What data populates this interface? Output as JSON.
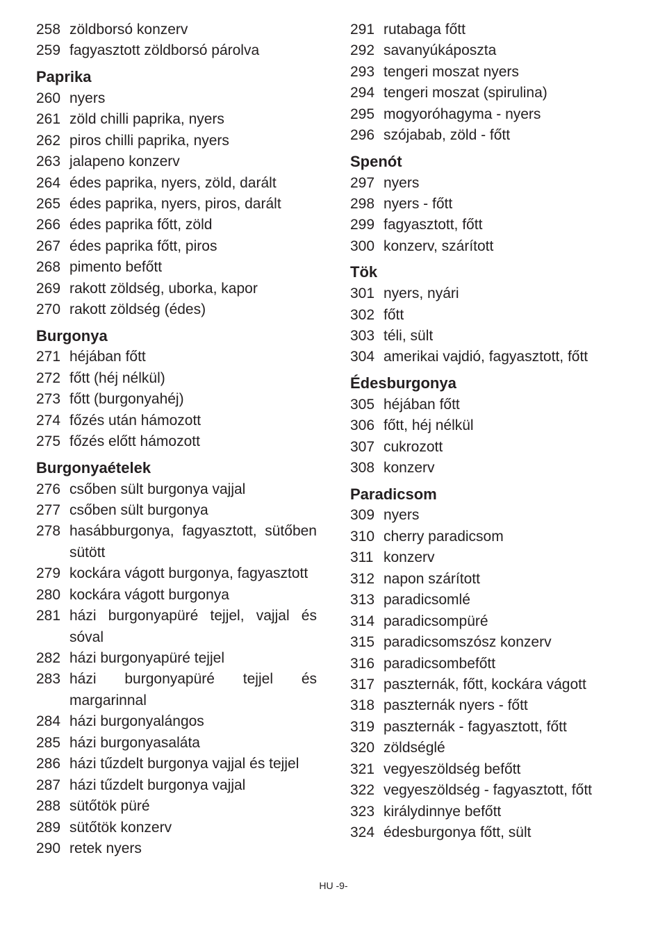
{
  "footer": "HU -9-",
  "leftColumn": [
    {
      "type": "item",
      "num": "258",
      "text": "zöldborsó konzerv"
    },
    {
      "type": "item",
      "num": "259",
      "text": "fagyasztott zöldborsó párolva"
    },
    {
      "type": "heading",
      "text": "Paprika"
    },
    {
      "type": "item",
      "num": "260",
      "text": "nyers"
    },
    {
      "type": "item",
      "num": "261",
      "text": "zöld chilli paprika, nyers"
    },
    {
      "type": "item",
      "num": "262",
      "text": "piros chilli paprika, nyers"
    },
    {
      "type": "item",
      "num": "263",
      "text": "jalapeno konzerv"
    },
    {
      "type": "item",
      "num": "264",
      "text": "édes paprika, nyers, zöld, darált"
    },
    {
      "type": "item",
      "num": "265",
      "text": "édes paprika, nyers, piros, darált"
    },
    {
      "type": "item",
      "num": "266",
      "text": "édes paprika főtt, zöld"
    },
    {
      "type": "item",
      "num": "267",
      "text": "édes paprika főtt, piros"
    },
    {
      "type": "item",
      "num": "268",
      "text": "pimento befőtt"
    },
    {
      "type": "item",
      "num": "269",
      "text": "rakott zöldség, uborka, kapor"
    },
    {
      "type": "item",
      "num": "270",
      "text": "rakott zöldség (édes)"
    },
    {
      "type": "heading",
      "text": "Burgonya"
    },
    {
      "type": "item",
      "num": "271",
      "text": "héjában főtt"
    },
    {
      "type": "item",
      "num": "272",
      "text": "főtt (héj nélkül)"
    },
    {
      "type": "item",
      "num": "273",
      "text": "főtt (burgonyahéj)"
    },
    {
      "type": "item",
      "num": "274",
      "text": "főzés után hámozott"
    },
    {
      "type": "item",
      "num": "275",
      "text": "főzés előtt hámozott"
    },
    {
      "type": "heading",
      "text": "Burgonyaételek"
    },
    {
      "type": "item",
      "num": "276",
      "text": "csőben sült burgonya vajjal"
    },
    {
      "type": "item",
      "num": "277",
      "text": "csőben sült burgonya"
    },
    {
      "type": "item",
      "num": "278",
      "text": "hasábburgonya, fagyasztott, sütőben sütött",
      "justify": true
    },
    {
      "type": "item",
      "num": "279",
      "text": "kockára vágott burgonya, fagyasztott"
    },
    {
      "type": "item",
      "num": "280",
      "text": "kockára vágott burgonya"
    },
    {
      "type": "item",
      "num": "281",
      "text": "házi burgonyapüré tejjel, vajjal és sóval",
      "justify": true
    },
    {
      "type": "item",
      "num": "282",
      "text": "házi burgonyapüré tejjel"
    },
    {
      "type": "item",
      "num": "283",
      "text": "házi burgonyapüré tejjel és margarinnal",
      "justify": true
    },
    {
      "type": "item",
      "num": "284",
      "text": "házi burgonyalángos"
    },
    {
      "type": "item",
      "num": "285",
      "text": "házi burgonyasaláta"
    },
    {
      "type": "item",
      "num": "286",
      "text": "házi tűzdelt burgonya vajjal és tejjel"
    },
    {
      "type": "item",
      "num": "287",
      "text": "házi tűzdelt burgonya vajjal"
    },
    {
      "type": "item",
      "num": "288",
      "text": "sütőtök püré"
    },
    {
      "type": "item",
      "num": "289",
      "text": "sütőtök konzerv"
    },
    {
      "type": "item",
      "num": "290",
      "text": "retek nyers"
    }
  ],
  "rightColumn": [
    {
      "type": "item",
      "num": "291",
      "text": "rutabaga főtt"
    },
    {
      "type": "item",
      "num": "292",
      "text": "savanyúkáposzta"
    },
    {
      "type": "item",
      "num": "293",
      "text": "tengeri moszat nyers"
    },
    {
      "type": "item",
      "num": "294",
      "text": "tengeri moszat (spirulina)"
    },
    {
      "type": "item",
      "num": "295",
      "text": "mogyoróhagyma - nyers"
    },
    {
      "type": "item",
      "num": "296",
      "text": "szójabab, zöld - főtt"
    },
    {
      "type": "heading",
      "text": "Spenót"
    },
    {
      "type": "item",
      "num": "297",
      "text": "nyers"
    },
    {
      "type": "item",
      "num": "298",
      "text": "nyers - főtt"
    },
    {
      "type": "item",
      "num": "299",
      "text": "fagyasztott, főtt"
    },
    {
      "type": "item",
      "num": "300",
      "text": "konzerv, szárított"
    },
    {
      "type": "heading",
      "text": "Tök"
    },
    {
      "type": "item",
      "num": "301",
      "text": "nyers, nyári"
    },
    {
      "type": "item",
      "num": "302",
      "text": "főtt"
    },
    {
      "type": "item",
      "num": "303",
      "text": "téli, sült"
    },
    {
      "type": "item",
      "num": "304",
      "text": "amerikai vajdió, fagyasztott, főtt"
    },
    {
      "type": "heading",
      "text": "Édesburgonya"
    },
    {
      "type": "item",
      "num": "305",
      "text": "héjában főtt"
    },
    {
      "type": "item",
      "num": "306",
      "text": "főtt, héj nélkül"
    },
    {
      "type": "item",
      "num": "307",
      "text": "cukrozott"
    },
    {
      "type": "item",
      "num": "308",
      "text": "konzerv"
    },
    {
      "type": "heading",
      "text": "Paradicsom"
    },
    {
      "type": "item",
      "num": "309",
      "text": "nyers"
    },
    {
      "type": "item",
      "num": "310",
      "text": "cherry paradicsom"
    },
    {
      "type": "item",
      "num": "311",
      "text": "konzerv"
    },
    {
      "type": "item",
      "num": "312",
      "text": "napon szárított"
    },
    {
      "type": "item",
      "num": "313",
      "text": "paradicsomlé"
    },
    {
      "type": "item",
      "num": "314",
      "text": "paradicsompüré"
    },
    {
      "type": "item",
      "num": "315",
      "text": "paradicsomszósz konzerv"
    },
    {
      "type": "item",
      "num": "316",
      "text": "paradicsombefőtt"
    },
    {
      "type": "item",
      "num": "317",
      "text": "paszternák, főtt, kockára vágott"
    },
    {
      "type": "item",
      "num": "318",
      "text": "paszternák nyers - főtt"
    },
    {
      "type": "item",
      "num": "319",
      "text": "paszternák - fagyasztott, főtt"
    },
    {
      "type": "item",
      "num": "320",
      "text": "zöldséglé"
    },
    {
      "type": "item",
      "num": "321",
      "text": "vegyeszöldség befőtt"
    },
    {
      "type": "item",
      "num": "322",
      "text": "vegyeszöldség - fagyasztott, főtt"
    },
    {
      "type": "item",
      "num": "323",
      "text": "királydinnye befőtt"
    },
    {
      "type": "item",
      "num": "324",
      "text": "édesburgonya főtt, sült"
    }
  ]
}
